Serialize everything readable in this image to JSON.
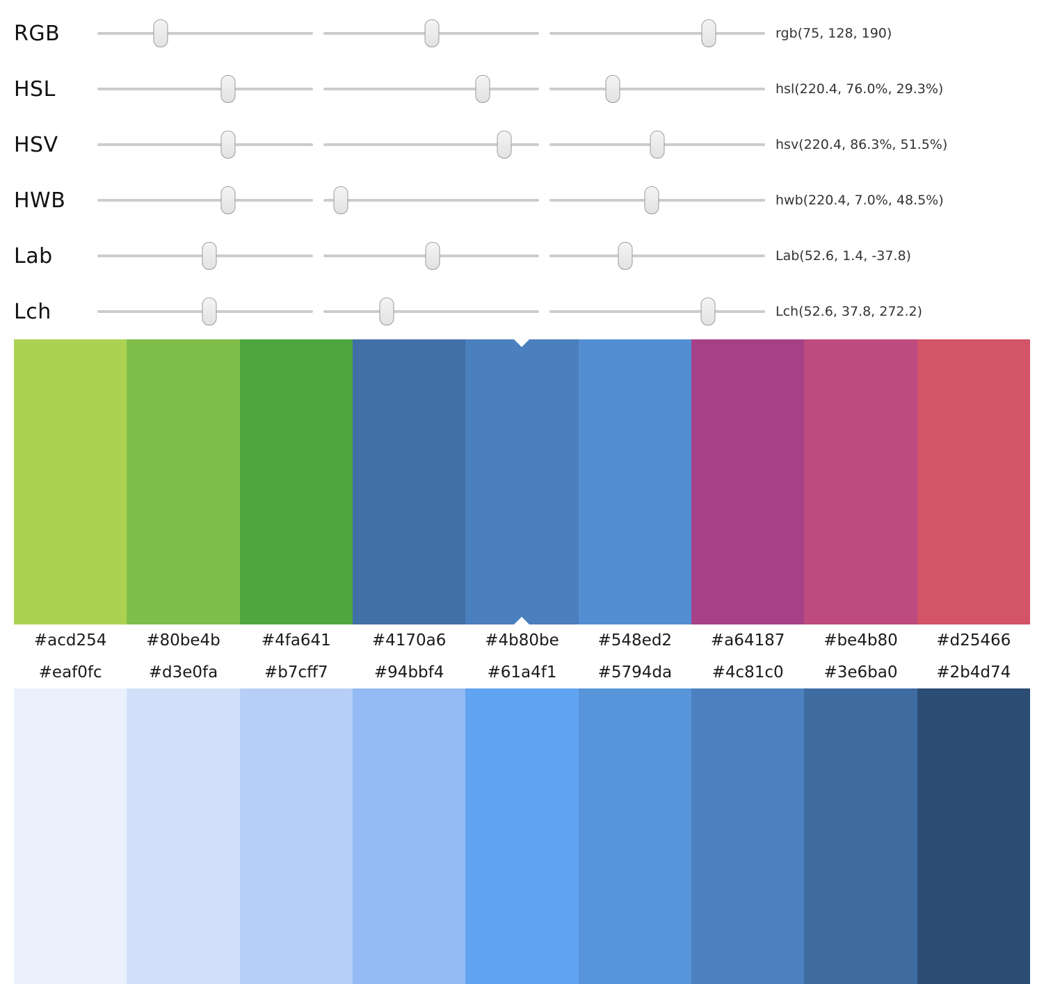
{
  "color_models": [
    {
      "label": "RGB",
      "value": "rgb(75, 128, 190)",
      "thumbs_pct": [
        29.4,
        50.2,
        74.0
      ]
    },
    {
      "label": "HSL",
      "value": "hsl(220.4, 76.0%, 29.3%)",
      "thumbs_pct": [
        60.5,
        74.0,
        29.3
      ]
    },
    {
      "label": "HSV",
      "value": "hsv(220.4, 86.3%, 51.5%)",
      "thumbs_pct": [
        60.5,
        84.0,
        50.0
      ]
    },
    {
      "label": "HWB",
      "value": "hwb(220.4, 7.0%, 48.5%)",
      "thumbs_pct": [
        60.5,
        8.0,
        47.5
      ]
    },
    {
      "label": "Lab",
      "value": "Lab(52.6, 1.4, -37.8)",
      "thumbs_pct": [
        52.0,
        50.5,
        35.3
      ]
    },
    {
      "label": "Lch",
      "value": "Lch(52.6, 37.8, 272.2)",
      "thumbs_pct": [
        52.0,
        29.5,
        73.5
      ]
    }
  ],
  "hue_palette": {
    "selected_index": 4,
    "selected_hex": "#4b80be",
    "swatches": [
      "#acd254",
      "#80be4b",
      "#4fa641",
      "#4170a6",
      "#4b80be",
      "#548ed2",
      "#a64187",
      "#be4b80",
      "#d25466"
    ]
  },
  "shade_palette": {
    "swatches": [
      "#eaf0fc",
      "#d3e0fa",
      "#b7cff7",
      "#94bbf4",
      "#61a4f1",
      "#5794da",
      "#4c81c0",
      "#3e6ba0",
      "#2b4d74"
    ]
  }
}
